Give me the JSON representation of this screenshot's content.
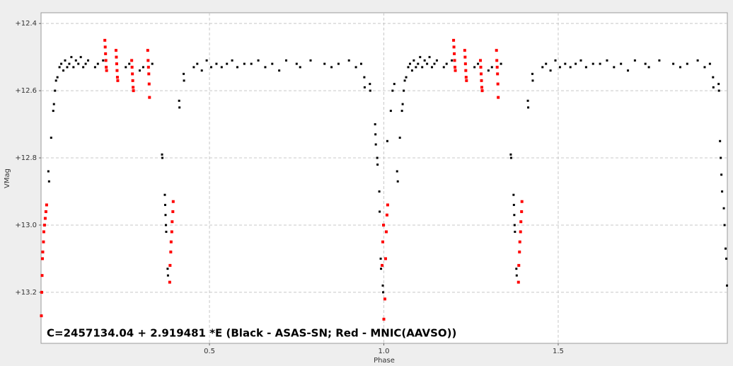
{
  "chart_data": {
    "type": "scatter",
    "annotation": "C=2457134.04 + 2.919481 *E (Black - ASAS-SN; Red - MNIC(AAVSO))",
    "x_label": "Phase",
    "y_label": "VMag",
    "xlim": [
      0.017,
      1.985
    ],
    "ylim": [
      12.368,
      13.352
    ],
    "invert_y": true,
    "grid": true,
    "xticks": [
      0.5,
      {
        "value": 1.0,
        "label": "1.0"
      },
      1.5
    ],
    "yticks": [
      {
        "value": 12.4,
        "label": "+12.4"
      },
      {
        "value": 12.6,
        "label": "+12.6"
      },
      {
        "value": 12.8,
        "label": "+12.8"
      },
      {
        "value": 13.0,
        "label": "+13.0"
      },
      {
        "value": 13.2,
        "label": "+13.2"
      }
    ],
    "series": [
      {
        "color": "#000000",
        "x": [
          0.038,
          0.04,
          0.046,
          0.052,
          0.054,
          0.057,
          0.06,
          0.064,
          0.07,
          0.075,
          0.081,
          0.086,
          0.092,
          0.098,
          0.104,
          0.11,
          0.117,
          0.124,
          0.131,
          0.138,
          0.145,
          0.152,
          0.172,
          0.18,
          0.195,
          0.26,
          0.27,
          0.3,
          0.31,
          0.336,
          0.364,
          0.365,
          0.372,
          0.373,
          0.374,
          0.375,
          0.376,
          0.38,
          0.381,
          0.413,
          0.414,
          0.426,
          0.427,
          0.455,
          0.465,
          0.478,
          0.492,
          0.505,
          0.52,
          0.535,
          0.55,
          0.565,
          0.58,
          0.6,
          0.62,
          0.64,
          0.66,
          0.68,
          0.7,
          0.72,
          0.75,
          0.76,
          0.79,
          0.83,
          0.85,
          0.87,
          0.9,
          0.92,
          0.935,
          0.944,
          0.945,
          0.96,
          0.961,
          0.975,
          0.976,
          0.977,
          0.981,
          0.982,
          0.987,
          0.988,
          0.991,
          0.992,
          0.997,
          0.998
        ],
        "values": [
          12.84,
          12.87,
          12.74,
          12.66,
          12.64,
          12.6,
          12.57,
          12.56,
          12.53,
          12.52,
          12.54,
          12.51,
          12.53,
          12.52,
          12.5,
          12.53,
          12.51,
          12.52,
          12.5,
          12.53,
          12.52,
          12.51,
          12.53,
          12.52,
          12.51,
          12.53,
          12.52,
          12.54,
          12.53,
          12.52,
          12.79,
          12.8,
          12.91,
          12.94,
          12.97,
          13.0,
          13.02,
          13.13,
          13.15,
          12.63,
          12.65,
          12.55,
          12.57,
          12.53,
          12.52,
          12.54,
          12.51,
          12.53,
          12.52,
          12.53,
          12.52,
          12.51,
          12.53,
          12.52,
          12.52,
          12.51,
          12.53,
          12.52,
          12.54,
          12.51,
          12.52,
          12.53,
          12.51,
          12.52,
          12.53,
          12.52,
          12.51,
          12.53,
          12.52,
          12.56,
          12.59,
          12.58,
          12.6,
          12.7,
          12.73,
          12.76,
          12.8,
          12.82,
          12.9,
          12.96,
          13.1,
          13.13,
          13.18,
          13.2
        ]
      },
      {
        "color": "#000000",
        "x": [
          1.01,
          1.02,
          1.025,
          1.03,
          1.038,
          1.04,
          1.046,
          1.052,
          1.054,
          1.057,
          1.06,
          1.064,
          1.07,
          1.075,
          1.081,
          1.086,
          1.092,
          1.098,
          1.104,
          1.11,
          1.117,
          1.124,
          1.131,
          1.138,
          1.145,
          1.152,
          1.172,
          1.18,
          1.195,
          1.26,
          1.27,
          1.3,
          1.31,
          1.336,
          1.364,
          1.365,
          1.372,
          1.373,
          1.374,
          1.375,
          1.376,
          1.38,
          1.381,
          1.413,
          1.414,
          1.426,
          1.427,
          1.455,
          1.465,
          1.478,
          1.492,
          1.505,
          1.52,
          1.535,
          1.55,
          1.565,
          1.58,
          1.6,
          1.62,
          1.64,
          1.66,
          1.68,
          1.7,
          1.72,
          1.75,
          1.76,
          1.79,
          1.83,
          1.85,
          1.87,
          1.9,
          1.92,
          1.935,
          1.944,
          1.945,
          1.96,
          1.961,
          1.964,
          1.966,
          1.968,
          1.97,
          1.975,
          1.977,
          1.98,
          1.982,
          1.984
        ],
        "values": [
          12.75,
          12.66,
          12.6,
          12.58,
          12.84,
          12.87,
          12.74,
          12.66,
          12.64,
          12.6,
          12.57,
          12.56,
          12.53,
          12.52,
          12.54,
          12.51,
          12.53,
          12.52,
          12.5,
          12.53,
          12.51,
          12.52,
          12.5,
          12.53,
          12.52,
          12.51,
          12.53,
          12.52,
          12.51,
          12.53,
          12.52,
          12.54,
          12.53,
          12.52,
          12.79,
          12.8,
          12.91,
          12.94,
          12.97,
          13.0,
          13.02,
          13.13,
          13.15,
          12.63,
          12.65,
          12.55,
          12.57,
          12.53,
          12.52,
          12.54,
          12.51,
          12.53,
          12.52,
          12.53,
          12.52,
          12.51,
          12.53,
          12.52,
          12.52,
          12.51,
          12.53,
          12.52,
          12.54,
          12.51,
          12.52,
          12.53,
          12.51,
          12.52,
          12.53,
          12.52,
          12.51,
          12.53,
          12.52,
          12.56,
          12.59,
          12.58,
          12.6,
          12.75,
          12.8,
          12.85,
          12.9,
          12.95,
          13.0,
          13.07,
          13.1,
          13.18
        ]
      },
      {
        "color": "#ff0000",
        "x": [
          0.018,
          0.019,
          0.02,
          0.021,
          0.022,
          0.024,
          0.025,
          0.027,
          0.029,
          0.031,
          0.033,
          0.2,
          0.201,
          0.202,
          0.203,
          0.204,
          0.205,
          0.232,
          0.233,
          0.234,
          0.235,
          0.236,
          0.237,
          0.277,
          0.278,
          0.279,
          0.28,
          0.281,
          0.282,
          0.323,
          0.324,
          0.325,
          0.326,
          0.327,
          0.328,
          0.386,
          0.387,
          0.389,
          0.39,
          0.392,
          0.393,
          0.395,
          0.396,
          0.995,
          0.997,
          0.999
        ],
        "values": [
          13.27,
          13.2,
          13.15,
          13.1,
          13.08,
          13.05,
          13.02,
          13.0,
          12.98,
          12.96,
          12.94,
          12.45,
          12.47,
          12.49,
          12.51,
          12.53,
          12.54,
          12.48,
          12.5,
          12.52,
          12.54,
          12.56,
          12.57,
          12.51,
          12.53,
          12.55,
          12.57,
          12.59,
          12.6,
          12.48,
          12.51,
          12.53,
          12.55,
          12.58,
          12.62,
          13.17,
          13.12,
          13.08,
          13.05,
          13.02,
          12.99,
          12.96,
          12.93,
          13.12,
          13.05,
          13.0
        ]
      },
      {
        "color": "#ff0000",
        "x": [
          1.0,
          1.003,
          1.005,
          1.007,
          1.009,
          1.011,
          1.2,
          1.201,
          1.202,
          1.203,
          1.204,
          1.205,
          1.232,
          1.233,
          1.234,
          1.235,
          1.236,
          1.237,
          1.277,
          1.278,
          1.279,
          1.28,
          1.281,
          1.282,
          1.323,
          1.324,
          1.325,
          1.326,
          1.327,
          1.328,
          1.386,
          1.387,
          1.389,
          1.39,
          1.392,
          1.393,
          1.395,
          1.396
        ],
        "values": [
          13.28,
          13.22,
          13.1,
          13.02,
          12.97,
          12.94,
          12.45,
          12.47,
          12.49,
          12.51,
          12.53,
          12.54,
          12.48,
          12.5,
          12.52,
          12.54,
          12.56,
          12.57,
          12.51,
          12.53,
          12.55,
          12.57,
          12.59,
          12.6,
          12.48,
          12.51,
          12.53,
          12.55,
          12.58,
          12.62,
          13.17,
          13.12,
          13.08,
          13.05,
          13.02,
          12.99,
          12.96,
          12.93
        ]
      }
    ]
  }
}
